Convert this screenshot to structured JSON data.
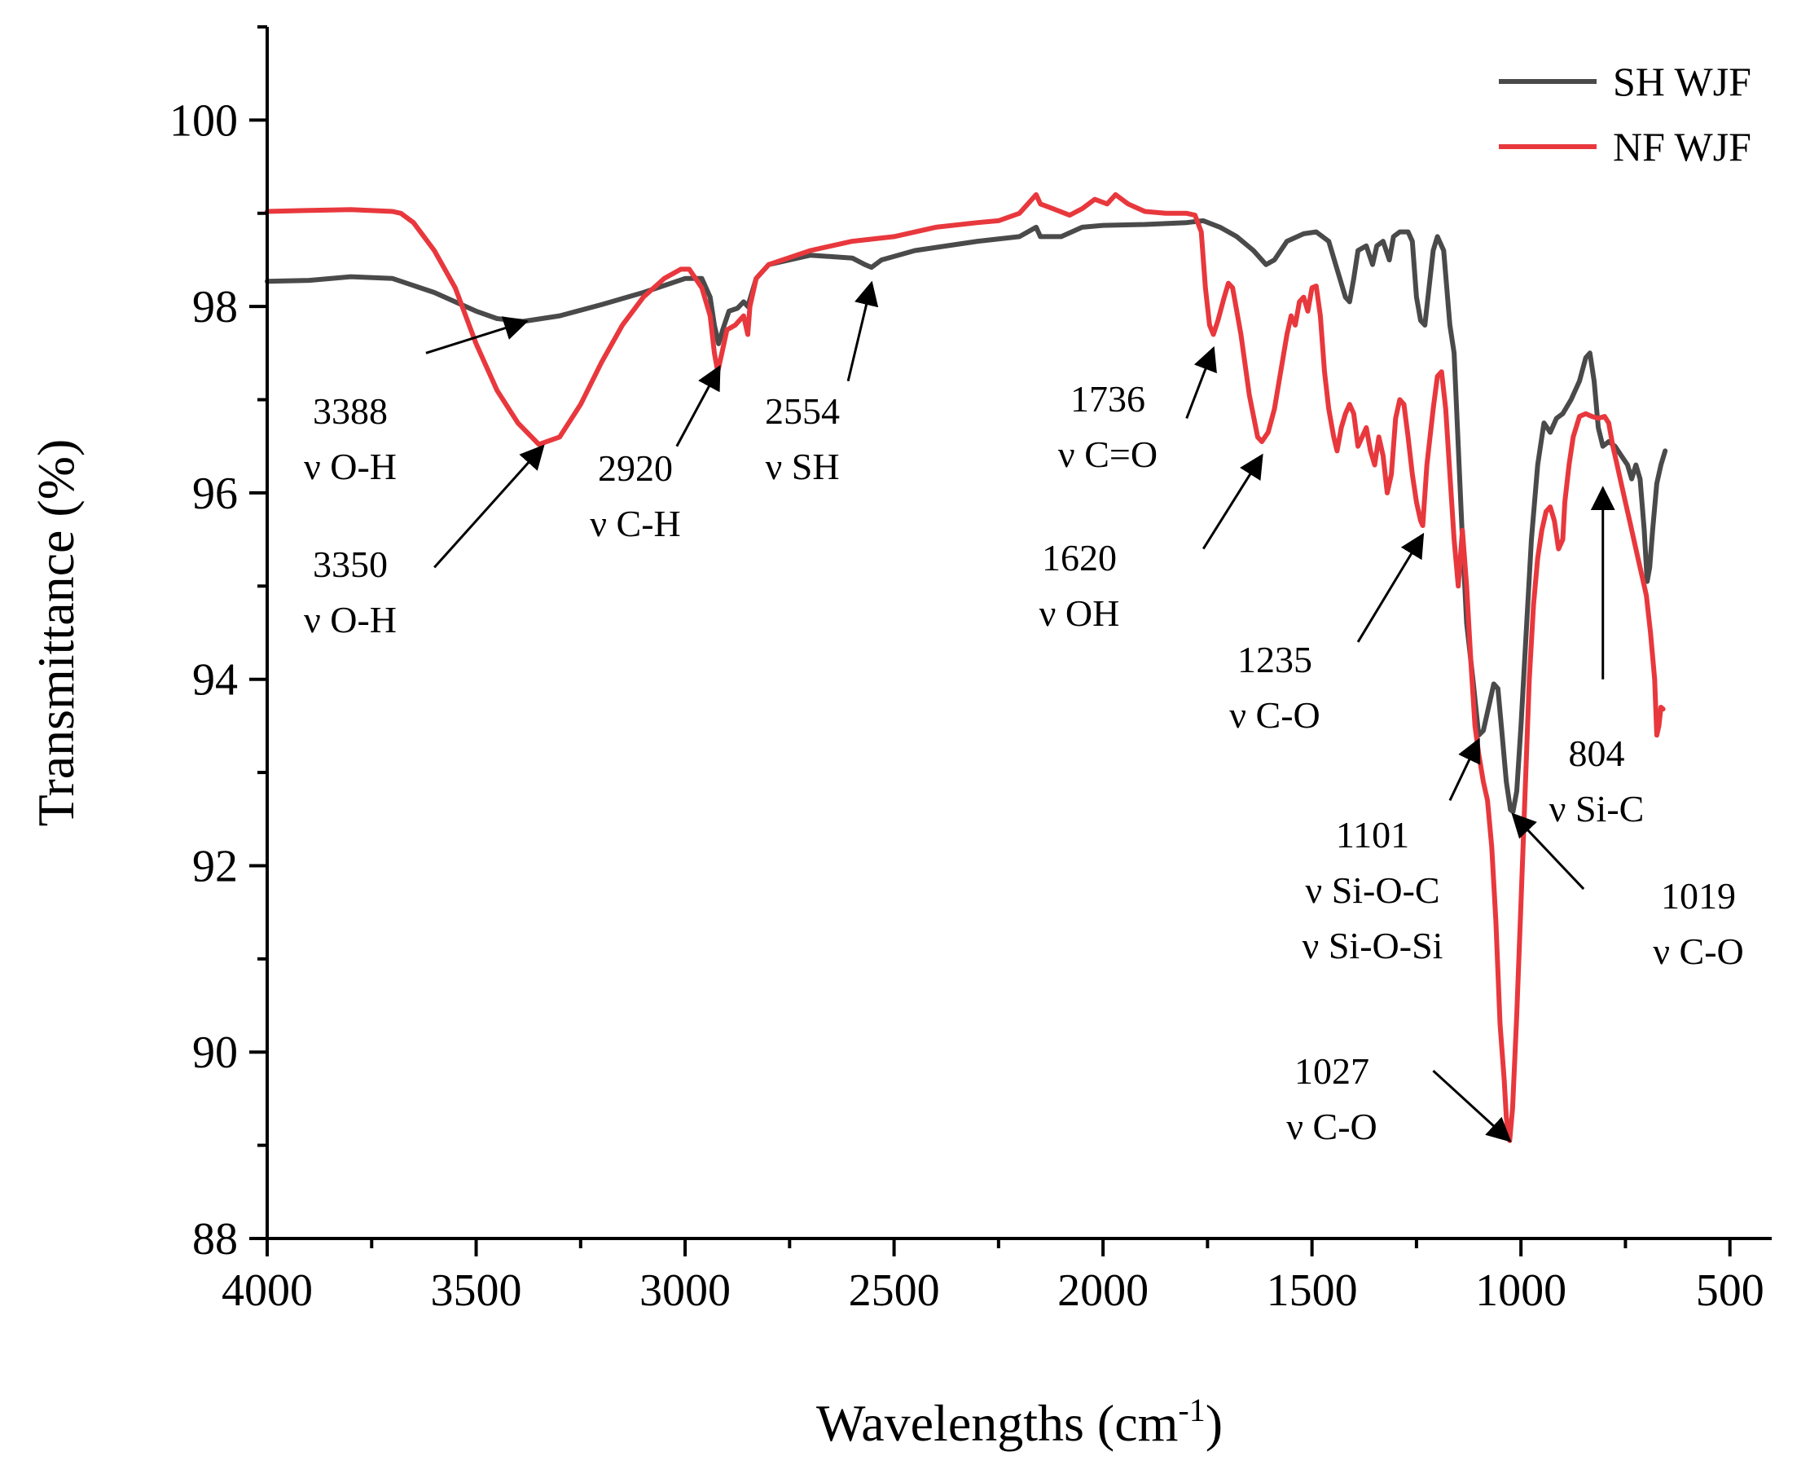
{
  "chart_data": {
    "type": "line",
    "title": "",
    "xlabel": "Wavelengths (cm",
    "xlabel_sup": "-1",
    "xlabel_close": ")",
    "ylabel": "Transmittance (%)",
    "xlim": [
      4000,
      400
    ],
    "ylim": [
      88,
      101
    ],
    "x_ticks": [
      4000,
      3500,
      3000,
      2500,
      2000,
      1500,
      1000,
      500
    ],
    "x_tick_labels": [
      "4000",
      "3500",
      "3000",
      "2500",
      "2000",
      "1500",
      "1000",
      "500"
    ],
    "y_ticks": [
      88,
      90,
      92,
      94,
      96,
      98,
      100
    ],
    "y_tick_labels": [
      "88",
      "90",
      "92",
      "94",
      "96",
      "98",
      "100"
    ],
    "grid": false,
    "legend_position": "top-right",
    "series": [
      {
        "name": "SH WJF",
        "color": "#4a4a4a",
        "points": [
          [
            4000,
            98.27
          ],
          [
            3900,
            98.28
          ],
          [
            3800,
            98.32
          ],
          [
            3700,
            98.3
          ],
          [
            3600,
            98.15
          ],
          [
            3500,
            97.95
          ],
          [
            3450,
            97.87
          ],
          [
            3388,
            97.84
          ],
          [
            3300,
            97.9
          ],
          [
            3200,
            98.02
          ],
          [
            3100,
            98.15
          ],
          [
            3000,
            98.3
          ],
          [
            2960,
            98.3
          ],
          [
            2940,
            98.1
          ],
          [
            2930,
            97.8
          ],
          [
            2920,
            97.6
          ],
          [
            2910,
            97.75
          ],
          [
            2895,
            97.95
          ],
          [
            2875,
            97.98
          ],
          [
            2860,
            98.05
          ],
          [
            2850,
            98.0
          ],
          [
            2830,
            98.3
          ],
          [
            2800,
            98.45
          ],
          [
            2700,
            98.55
          ],
          [
            2600,
            98.52
          ],
          [
            2570,
            98.45
          ],
          [
            2554,
            98.42
          ],
          [
            2530,
            98.5
          ],
          [
            2450,
            98.6
          ],
          [
            2300,
            98.7
          ],
          [
            2200,
            98.75
          ],
          [
            2160,
            98.85
          ],
          [
            2150,
            98.75
          ],
          [
            2100,
            98.75
          ],
          [
            2050,
            98.85
          ],
          [
            2000,
            98.87
          ],
          [
            1900,
            98.88
          ],
          [
            1800,
            98.9
          ],
          [
            1760,
            98.92
          ],
          [
            1720,
            98.85
          ],
          [
            1680,
            98.75
          ],
          [
            1640,
            98.6
          ],
          [
            1610,
            98.45
          ],
          [
            1590,
            98.5
          ],
          [
            1560,
            98.7
          ],
          [
            1520,
            98.78
          ],
          [
            1490,
            98.8
          ],
          [
            1460,
            98.7
          ],
          [
            1440,
            98.4
          ],
          [
            1420,
            98.1
          ],
          [
            1410,
            98.05
          ],
          [
            1400,
            98.3
          ],
          [
            1390,
            98.6
          ],
          [
            1370,
            98.65
          ],
          [
            1355,
            98.45
          ],
          [
            1345,
            98.65
          ],
          [
            1330,
            98.7
          ],
          [
            1315,
            98.5
          ],
          [
            1305,
            98.75
          ],
          [
            1290,
            98.8
          ],
          [
            1270,
            98.8
          ],
          [
            1260,
            98.7
          ],
          [
            1250,
            98.1
          ],
          [
            1240,
            97.85
          ],
          [
            1230,
            97.8
          ],
          [
            1220,
            98.2
          ],
          [
            1210,
            98.6
          ],
          [
            1200,
            98.75
          ],
          [
            1185,
            98.6
          ],
          [
            1170,
            97.8
          ],
          [
            1160,
            97.5
          ],
          [
            1150,
            96.5
          ],
          [
            1140,
            95.5
          ],
          [
            1130,
            94.6
          ],
          [
            1115,
            94.0
          ],
          [
            1101,
            93.4
          ],
          [
            1090,
            93.45
          ],
          [
            1075,
            93.75
          ],
          [
            1065,
            93.95
          ],
          [
            1055,
            93.9
          ],
          [
            1045,
            93.4
          ],
          [
            1035,
            92.9
          ],
          [
            1025,
            92.6
          ],
          [
            1019,
            92.58
          ],
          [
            1010,
            92.8
          ],
          [
            1000,
            93.5
          ],
          [
            990,
            94.3
          ],
          [
            975,
            95.5
          ],
          [
            960,
            96.3
          ],
          [
            945,
            96.75
          ],
          [
            930,
            96.65
          ],
          [
            915,
            96.8
          ],
          [
            900,
            96.85
          ],
          [
            880,
            97.0
          ],
          [
            860,
            97.2
          ],
          [
            845,
            97.45
          ],
          [
            835,
            97.5
          ],
          [
            825,
            97.2
          ],
          [
            815,
            96.7
          ],
          [
            804,
            96.5
          ],
          [
            790,
            96.55
          ],
          [
            775,
            96.5
          ],
          [
            760,
            96.4
          ],
          [
            745,
            96.3
          ],
          [
            735,
            96.15
          ],
          [
            725,
            96.3
          ],
          [
            715,
            96.15
          ],
          [
            705,
            95.6
          ],
          [
            698,
            95.05
          ],
          [
            692,
            95.2
          ],
          [
            685,
            95.6
          ],
          [
            675,
            96.1
          ],
          [
            665,
            96.3
          ],
          [
            655,
            96.45
          ]
        ]
      },
      {
        "name": "NF WJF",
        "color": "#e8383d",
        "points": [
          [
            4000,
            99.02
          ],
          [
            3900,
            99.03
          ],
          [
            3800,
            99.04
          ],
          [
            3700,
            99.02
          ],
          [
            3680,
            99.0
          ],
          [
            3650,
            98.9
          ],
          [
            3600,
            98.6
          ],
          [
            3550,
            98.2
          ],
          [
            3500,
            97.6
          ],
          [
            3450,
            97.1
          ],
          [
            3400,
            96.75
          ],
          [
            3350,
            96.52
          ],
          [
            3300,
            96.6
          ],
          [
            3250,
            96.95
          ],
          [
            3200,
            97.4
          ],
          [
            3150,
            97.8
          ],
          [
            3100,
            98.1
          ],
          [
            3050,
            98.3
          ],
          [
            3010,
            98.4
          ],
          [
            2990,
            98.4
          ],
          [
            2960,
            98.2
          ],
          [
            2940,
            97.9
          ],
          [
            2930,
            97.5
          ],
          [
            2922,
            97.3
          ],
          [
            2912,
            97.5
          ],
          [
            2900,
            97.75
          ],
          [
            2880,
            97.8
          ],
          [
            2860,
            97.9
          ],
          [
            2850,
            97.7
          ],
          [
            2845,
            98.0
          ],
          [
            2830,
            98.3
          ],
          [
            2800,
            98.45
          ],
          [
            2700,
            98.6
          ],
          [
            2600,
            98.7
          ],
          [
            2500,
            98.75
          ],
          [
            2400,
            98.85
          ],
          [
            2300,
            98.9
          ],
          [
            2250,
            98.92
          ],
          [
            2200,
            99.0
          ],
          [
            2160,
            99.2
          ],
          [
            2150,
            99.1
          ],
          [
            2120,
            99.05
          ],
          [
            2080,
            98.98
          ],
          [
            2050,
            99.05
          ],
          [
            2020,
            99.15
          ],
          [
            1990,
            99.1
          ],
          [
            1970,
            99.2
          ],
          [
            1940,
            99.1
          ],
          [
            1900,
            99.02
          ],
          [
            1850,
            99.0
          ],
          [
            1800,
            99.0
          ],
          [
            1780,
            98.98
          ],
          [
            1765,
            98.8
          ],
          [
            1755,
            98.2
          ],
          [
            1745,
            97.8
          ],
          [
            1736,
            97.7
          ],
          [
            1725,
            97.85
          ],
          [
            1710,
            98.1
          ],
          [
            1700,
            98.25
          ],
          [
            1690,
            98.2
          ],
          [
            1670,
            97.7
          ],
          [
            1650,
            97.05
          ],
          [
            1630,
            96.6
          ],
          [
            1620,
            96.55
          ],
          [
            1605,
            96.65
          ],
          [
            1590,
            96.9
          ],
          [
            1575,
            97.3
          ],
          [
            1560,
            97.7
          ],
          [
            1550,
            97.9
          ],
          [
            1540,
            97.8
          ],
          [
            1530,
            98.05
          ],
          [
            1520,
            98.1
          ],
          [
            1510,
            97.95
          ],
          [
            1500,
            98.2
          ],
          [
            1490,
            98.22
          ],
          [
            1480,
            97.9
          ],
          [
            1470,
            97.3
          ],
          [
            1460,
            96.9
          ],
          [
            1448,
            96.6
          ],
          [
            1440,
            96.45
          ],
          [
            1430,
            96.7
          ],
          [
            1420,
            96.85
          ],
          [
            1410,
            96.95
          ],
          [
            1400,
            96.85
          ],
          [
            1390,
            96.5
          ],
          [
            1380,
            96.6
          ],
          [
            1370,
            96.7
          ],
          [
            1360,
            96.45
          ],
          [
            1350,
            96.3
          ],
          [
            1340,
            96.6
          ],
          [
            1330,
            96.4
          ],
          [
            1320,
            96.0
          ],
          [
            1310,
            96.2
          ],
          [
            1300,
            96.8
          ],
          [
            1290,
            97.0
          ],
          [
            1280,
            96.95
          ],
          [
            1270,
            96.6
          ],
          [
            1260,
            96.2
          ],
          [
            1250,
            95.9
          ],
          [
            1240,
            95.7
          ],
          [
            1235,
            95.65
          ],
          [
            1225,
            96.3
          ],
          [
            1210,
            96.9
          ],
          [
            1200,
            97.25
          ],
          [
            1190,
            97.3
          ],
          [
            1180,
            96.9
          ],
          [
            1170,
            96.2
          ],
          [
            1160,
            95.5
          ],
          [
            1150,
            95.0
          ],
          [
            1140,
            95.6
          ],
          [
            1130,
            95.0
          ],
          [
            1120,
            94.2
          ],
          [
            1110,
            93.5
          ],
          [
            1101,
            93.2
          ],
          [
            1090,
            92.9
          ],
          [
            1080,
            92.7
          ],
          [
            1070,
            92.2
          ],
          [
            1060,
            91.4
          ],
          [
            1050,
            90.3
          ],
          [
            1040,
            89.7
          ],
          [
            1035,
            89.3
          ],
          [
            1030,
            89.1
          ],
          [
            1027,
            89.05
          ],
          [
            1020,
            89.4
          ],
          [
            1010,
            90.4
          ],
          [
            1000,
            91.6
          ],
          [
            990,
            92.8
          ],
          [
            980,
            94.0
          ],
          [
            970,
            94.8
          ],
          [
            960,
            95.3
          ],
          [
            950,
            95.6
          ],
          [
            940,
            95.8
          ],
          [
            930,
            95.85
          ],
          [
            920,
            95.7
          ],
          [
            910,
            95.4
          ],
          [
            900,
            95.5
          ],
          [
            895,
            95.9
          ],
          [
            885,
            96.3
          ],
          [
            875,
            96.6
          ],
          [
            860,
            96.82
          ],
          [
            845,
            96.85
          ],
          [
            830,
            96.82
          ],
          [
            815,
            96.8
          ],
          [
            800,
            96.82
          ],
          [
            790,
            96.75
          ],
          [
            780,
            96.5
          ],
          [
            770,
            96.3
          ],
          [
            760,
            96.1
          ],
          [
            750,
            95.9
          ],
          [
            740,
            95.7
          ],
          [
            730,
            95.5
          ],
          [
            720,
            95.3
          ],
          [
            710,
            95.1
          ],
          [
            700,
            94.9
          ],
          [
            690,
            94.5
          ],
          [
            680,
            94.0
          ],
          [
            675,
            93.4
          ],
          [
            670,
            93.5
          ],
          [
            665,
            93.7
          ],
          [
            660,
            93.68
          ]
        ]
      }
    ],
    "annotations": [
      {
        "lines": [
          "3388",
          "ν  O-H"
        ],
        "target": [
          3380,
          97.84
        ],
        "from": [
          3620,
          97.5
        ]
      },
      {
        "lines": [
          "3350",
          "ν  O-H"
        ],
        "target": [
          3340,
          96.5
        ],
        "from": [
          3600,
          95.2
        ]
      },
      {
        "lines": [
          "2920",
          "ν C-H"
        ],
        "target": [
          2918,
          97.35
        ],
        "from": [
          3020,
          96.5
        ]
      },
      {
        "lines": [
          "2554",
          "ν SH"
        ],
        "target": [
          2554,
          98.25
        ],
        "from": [
          2610,
          97.2
        ]
      },
      {
        "lines": [
          "1736",
          "ν  C=O"
        ],
        "target": [
          1736,
          97.55
        ],
        "from": [
          1800,
          96.8
        ]
      },
      {
        "lines": [
          "1620",
          "ν  OH"
        ],
        "target": [
          1620,
          96.4
        ],
        "from": [
          1760,
          95.4
        ]
      },
      {
        "lines": [
          "1235",
          "ν  C-O"
        ],
        "target": [
          1235,
          95.55
        ],
        "from": [
          1390,
          94.4
        ]
      },
      {
        "lines": [
          "1101",
          "ν  Si-O-C",
          "ν  Si-O-Si"
        ],
        "target": [
          1101,
          93.35
        ],
        "from": [
          1170,
          92.7
        ]
      },
      {
        "lines": [
          "1019",
          "ν  C-O"
        ],
        "target": [
          1019,
          92.55
        ],
        "from": [
          850,
          91.75
        ]
      },
      {
        "lines": [
          "1027",
          "ν  C-O"
        ],
        "target": [
          1027,
          89.05
        ],
        "from": [
          1210,
          89.8
        ]
      },
      {
        "lines": [
          "804",
          "ν  Si-C"
        ],
        "target": [
          804,
          96.05
        ],
        "from": [
          804,
          94.0
        ]
      }
    ]
  }
}
